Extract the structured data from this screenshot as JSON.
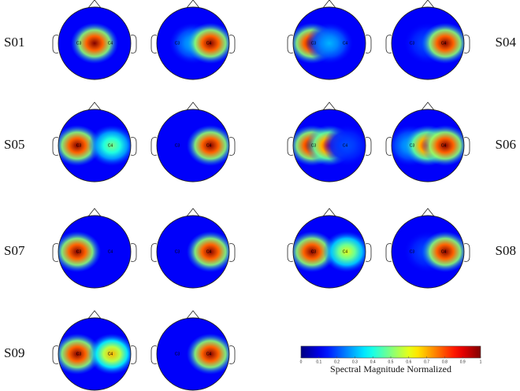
{
  "subjects": [
    {
      "label": "S01",
      "maps": [
        [
          0.1,
          1,
          0.1
        ],
        [
          0,
          0.3,
          1
        ]
      ]
    },
    {
      "label": "S04",
      "maps": [
        [
          1,
          0.3,
          0
        ],
        [
          0,
          0.2,
          1
        ]
      ]
    },
    {
      "label": "S05",
      "maps": [
        [
          1,
          0,
          0.5
        ],
        [
          0,
          0.1,
          1
        ]
      ]
    },
    {
      "label": "S06",
      "maps": [
        [
          1,
          0.9,
          0.2
        ],
        [
          0.3,
          0.9,
          1
        ]
      ]
    },
    {
      "label": "S07",
      "maps": [
        [
          1,
          0.1,
          0.1
        ],
        [
          0,
          0.1,
          1
        ]
      ]
    },
    {
      "label": "S08",
      "maps": [
        [
          1,
          0.1,
          0.6
        ],
        [
          0,
          0.2,
          1
        ]
      ]
    },
    {
      "label": "S09",
      "maps": [
        [
          1,
          0.1,
          0.7
        ],
        [
          0,
          0.1,
          1
        ]
      ]
    }
  ],
  "electrodes": [
    "C3",
    "C4"
  ],
  "colorbar": {
    "ticks": [
      0,
      0.1,
      0.2,
      0.3,
      0.4,
      0.5,
      0.6,
      0.7,
      0.8,
      0.9,
      1
    ],
    "label": "Spectral Magnitude Normalized"
  }
}
